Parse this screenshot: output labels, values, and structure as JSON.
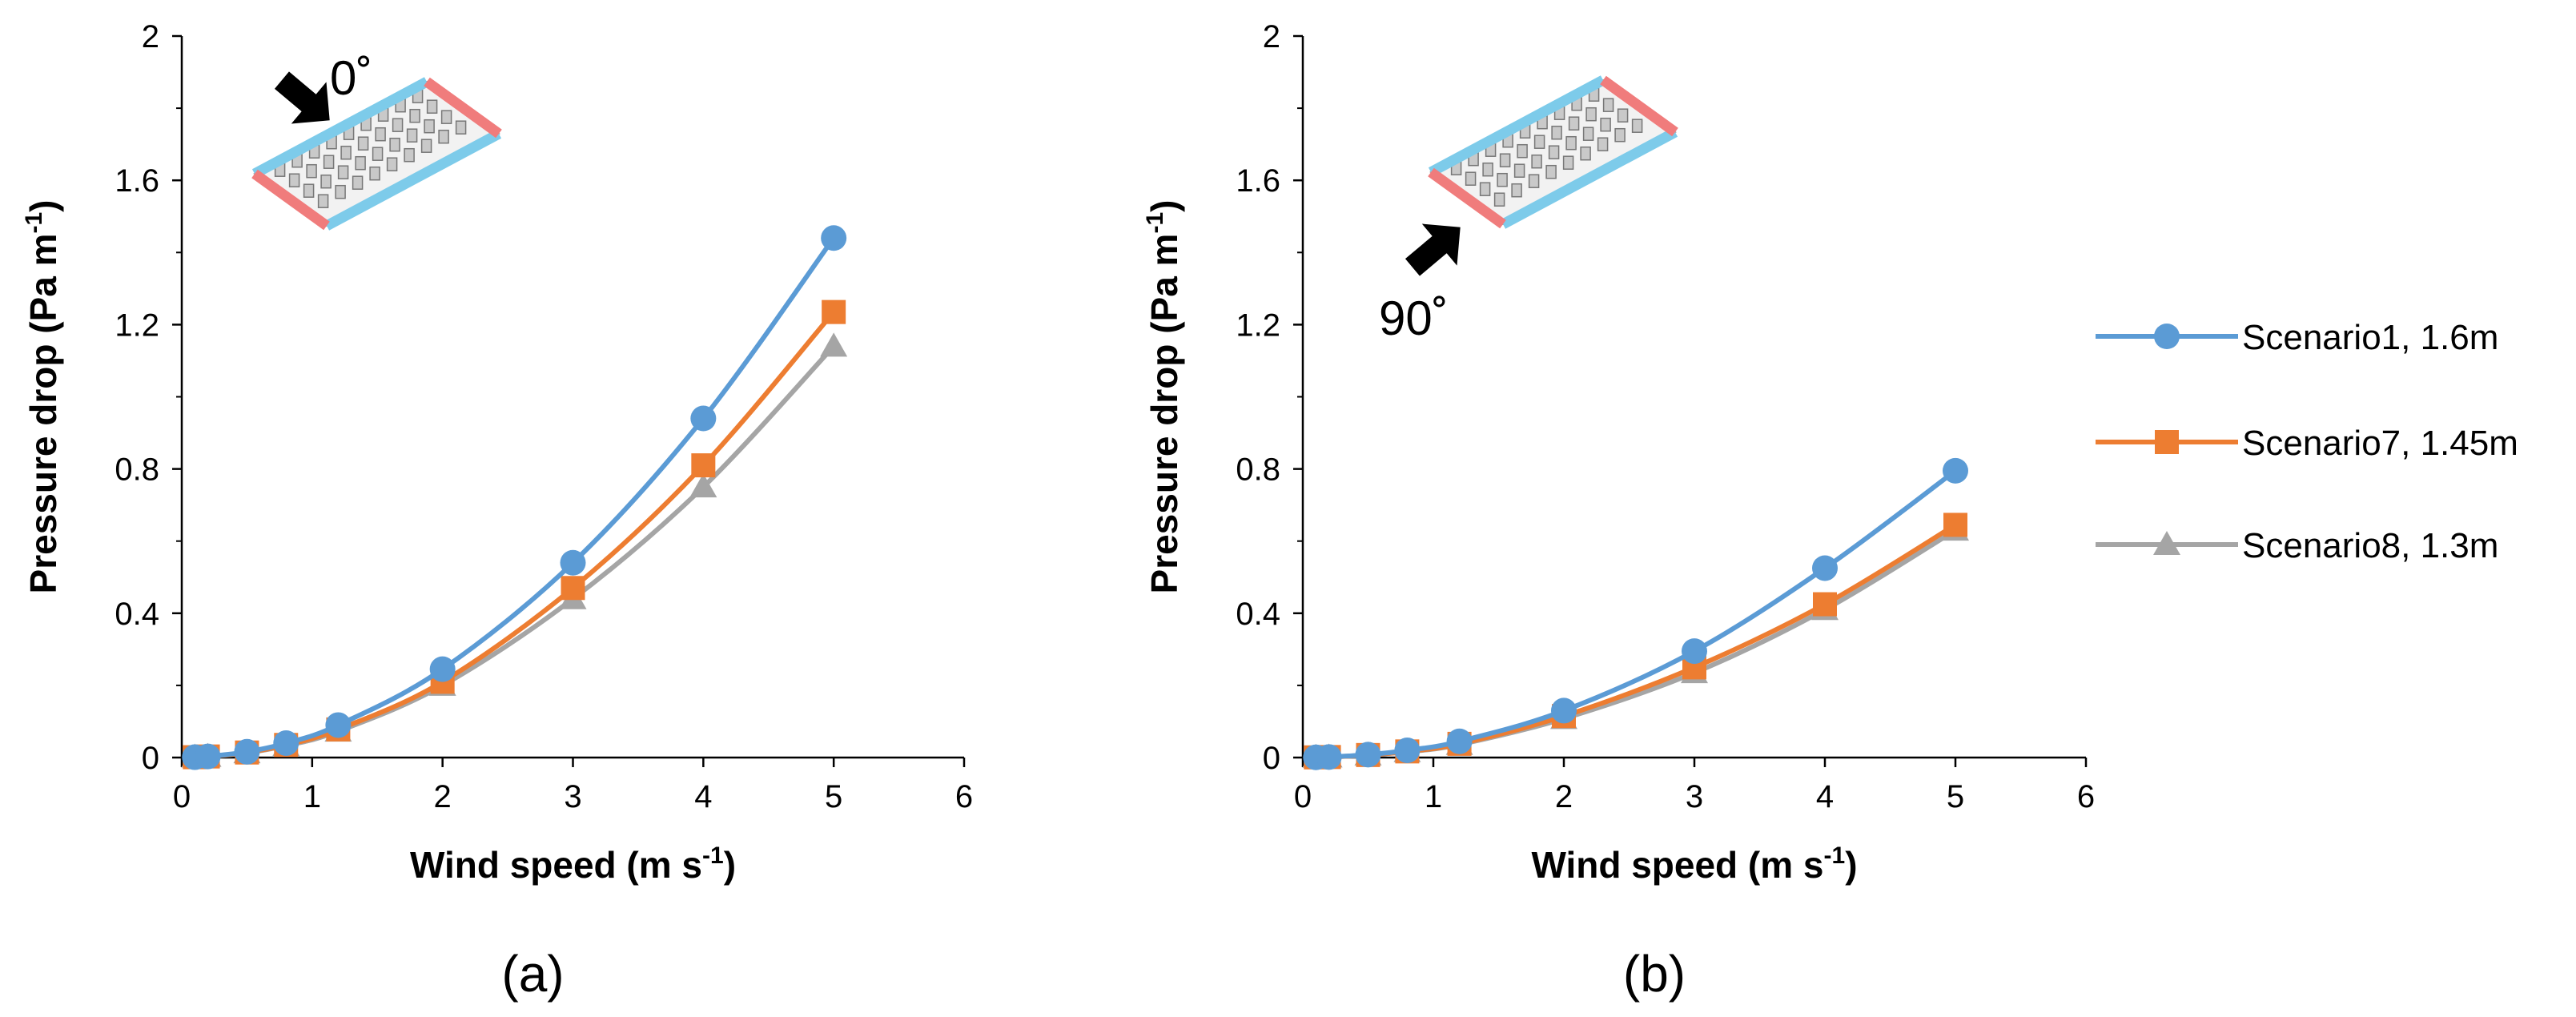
{
  "colors": {
    "scenario1": "#5B9BD5",
    "scenario7": "#ED7D31",
    "scenario8": "#A5A5A5",
    "axis": "#000000",
    "building_long": "#7DCBEA",
    "building_short": "#F07C7C"
  },
  "legend": [
    "Scenario1, 1.6m",
    "Scenario7, 1.45m",
    "Scenario8, 1.3m"
  ],
  "chart_data": [
    {
      "type": "line",
      "panel_label": "(a)",
      "inset_angle": "0˚",
      "inset_icon": "arrow-icon",
      "xlabel_main": "Wind speed (m s",
      "xlabel_sup": "-1",
      "xlabel_end": ")",
      "ylabel_main": "Pressure drop (Pa m",
      "ylabel_sup": "-1",
      "ylabel_end": ")",
      "xlim": [
        0,
        6
      ],
      "ylim": [
        0,
        2
      ],
      "xticks": [
        "0",
        "1",
        "2",
        "3",
        "4",
        "5",
        "6"
      ],
      "yticks": [
        "0",
        "0.4",
        "0.8",
        "1.2",
        "1.6",
        "2"
      ],
      "x": [
        0.1,
        0.2,
        0.5,
        0.8,
        1.2,
        2,
        3,
        4,
        5
      ],
      "series": [
        {
          "name": "Scenario1, 1.6m",
          "marker": "circle",
          "values": [
            0.001,
            0.003,
            0.016,
            0.04,
            0.09,
            0.245,
            0.54,
            0.94,
            1.44
          ]
        },
        {
          "name": "Scenario7, 1.45m",
          "marker": "square",
          "values": [
            0.001,
            0.003,
            0.014,
            0.035,
            0.078,
            0.21,
            0.47,
            0.81,
            1.235
          ]
        },
        {
          "name": "Scenario8, 1.3m",
          "marker": "triangle",
          "values": [
            0.001,
            0.003,
            0.013,
            0.033,
            0.073,
            0.2,
            0.44,
            0.75,
            1.14
          ]
        }
      ],
      "legend": "right"
    },
    {
      "type": "line",
      "panel_label": "(b)",
      "inset_angle": "90˚",
      "inset_icon": "arrow-icon",
      "xlabel_main": "Wind speed (m s",
      "xlabel_sup": "-1",
      "xlabel_end": ")",
      "ylabel_main": "Pressure drop (Pa m",
      "ylabel_sup": "-1",
      "ylabel_end": ")",
      "xlim": [
        0,
        6
      ],
      "ylim": [
        0,
        2
      ],
      "xticks": [
        "0",
        "1",
        "2",
        "3",
        "4",
        "5",
        "6"
      ],
      "yticks": [
        "0",
        "0.4",
        "0.8",
        "1.2",
        "1.6",
        "2"
      ],
      "x": [
        0.1,
        0.2,
        0.5,
        0.8,
        1.2,
        2,
        3,
        4,
        5
      ],
      "series": [
        {
          "name": "Scenario1, 1.6m",
          "marker": "circle",
          "values": [
            0.0005,
            0.0015,
            0.008,
            0.02,
            0.045,
            0.13,
            0.295,
            0.525,
            0.795
          ]
        },
        {
          "name": "Scenario7, 1.45m",
          "marker": "square",
          "values": [
            0.0005,
            0.0015,
            0.007,
            0.017,
            0.038,
            0.115,
            0.25,
            0.425,
            0.645
          ]
        },
        {
          "name": "Scenario8, 1.3m",
          "marker": "triangle",
          "values": [
            0.0005,
            0.0015,
            0.007,
            0.016,
            0.036,
            0.108,
            0.235,
            0.41,
            0.63
          ]
        }
      ],
      "legend": "right"
    }
  ]
}
